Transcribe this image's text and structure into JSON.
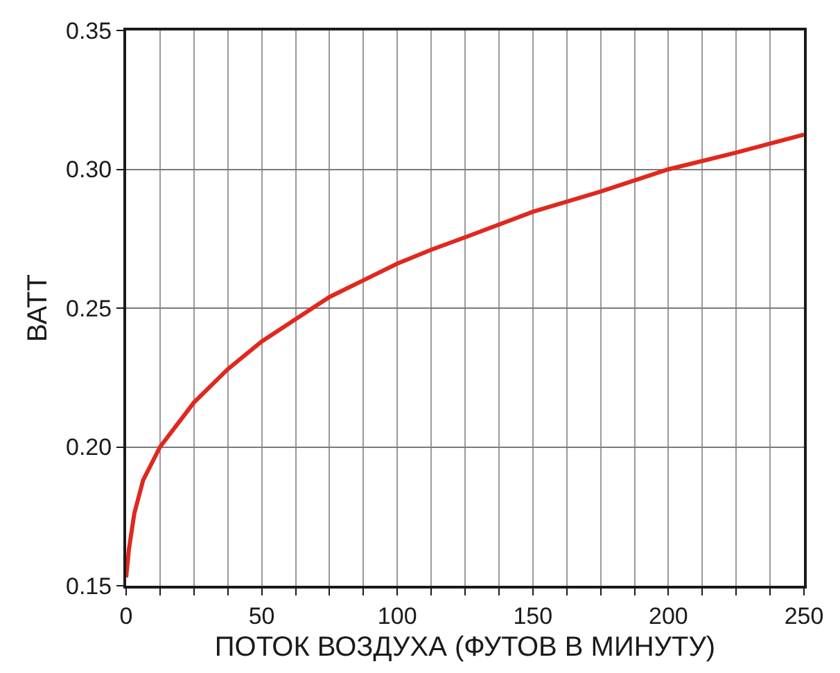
{
  "chart_data": {
    "type": "line",
    "xlabel": "ПОТОК ВОЗДУХА (ФУТОВ В МИНУТУ)",
    "ylabel": "ВАТТ",
    "x": [
      0,
      1,
      3,
      6.25,
      12.5,
      25,
      37.5,
      50,
      62.5,
      75,
      87.5,
      100,
      112.5,
      125,
      150,
      175,
      200,
      225,
      250
    ],
    "series": [
      {
        "color": "#e0281e",
        "values": [
          0.153,
          0.163,
          0.176,
          0.188,
          0.2,
          0.216,
          0.228,
          0.238,
          0.246,
          0.254,
          0.26,
          0.266,
          0.271,
          0.2755,
          0.2847,
          0.292,
          0.3,
          0.306,
          0.3125
        ]
      }
    ],
    "xlim": [
      0,
      250
    ],
    "ylim": [
      0.15,
      0.35
    ],
    "xticks": [
      0,
      {
        "value": 12.5,
        "label": null
      },
      {
        "value": 25,
        "label": null
      },
      {
        "value": 37.5,
        "label": null
      },
      50,
      {
        "value": 62.5,
        "label": null
      },
      {
        "value": 75,
        "label": null
      },
      {
        "value": 87.5,
        "label": null
      },
      100,
      {
        "value": 112.5,
        "label": null
      },
      {
        "value": 125,
        "label": null
      },
      {
        "value": 137.5,
        "label": null
      },
      150,
      {
        "value": 162.5,
        "label": null
      },
      {
        "value": 175,
        "label": null
      },
      {
        "value": 187.5,
        "label": null
      },
      200,
      {
        "value": 212.5,
        "label": null
      },
      {
        "value": 225,
        "label": null
      },
      {
        "value": 237.5,
        "label": null
      },
      250
    ],
    "yticks": [
      {
        "value": 0.15,
        "label": "0.15"
      },
      {
        "value": 0.2,
        "label": "0.20"
      },
      {
        "value": 0.25,
        "label": "0.25"
      },
      {
        "value": 0.3,
        "label": "0.30"
      },
      {
        "value": 0.35,
        "label": "0.35"
      }
    ],
    "grid": true,
    "marker": "none",
    "line_style": "solid"
  }
}
